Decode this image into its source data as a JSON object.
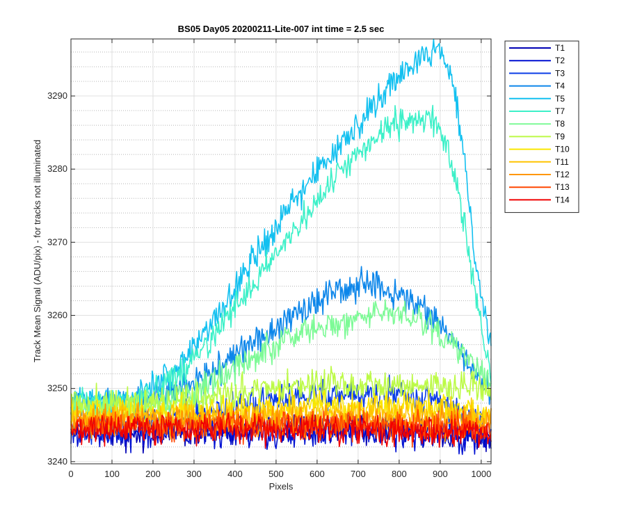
{
  "chart_data": {
    "type": "line",
    "title": "BS05 Day05 20200211-Lite-007 int time = 2.5 sec",
    "xlabel": "Pixels",
    "ylabel": "Track Mean Signal (ADU/pix) - for tracks not illuminated",
    "xlim": [
      0,
      1024
    ],
    "ylim": [
      3239.7,
      3297.8
    ],
    "xticks": [
      0,
      100,
      200,
      300,
      400,
      500,
      600,
      700,
      800,
      900,
      1000
    ],
    "yticks": [
      3240,
      3250,
      3260,
      3270,
      3280,
      3290
    ],
    "grid": "major and minor",
    "legend_position": "outside top-right",
    "series": [
      {
        "name": "T1",
        "color": "#0000b4",
        "x": [
          0,
          200,
          400,
          600,
          750,
          850,
          1000,
          1024
        ],
        "y": [
          3244,
          3244,
          3244.5,
          3244.5,
          3244.5,
          3244,
          3243.5,
          3243
        ]
      },
      {
        "name": "T2",
        "color": "#0010d2",
        "x": [
          0,
          200,
          400,
          600,
          750,
          850,
          1000,
          1024
        ],
        "y": [
          3244,
          3244,
          3244,
          3244,
          3244,
          3243.5,
          3243,
          3243
        ]
      },
      {
        "name": "T3",
        "color": "#0a3ce6",
        "x": [
          0,
          150,
          300,
          500,
          700,
          800,
          900,
          1000,
          1024
        ],
        "y": [
          3244.5,
          3245,
          3246.5,
          3248.5,
          3249.5,
          3249.5,
          3248,
          3245,
          3244
        ]
      },
      {
        "name": "T4",
        "color": "#0c86ea",
        "x": [
          0,
          150,
          250,
          350,
          450,
          550,
          650,
          700,
          750,
          800,
          850,
          900,
          950,
          1000,
          1024
        ],
        "y": [
          3248,
          3248,
          3249.5,
          3252.5,
          3256.5,
          3260,
          3263,
          3264,
          3264,
          3263,
          3261.5,
          3259,
          3255,
          3251,
          3249
        ]
      },
      {
        "name": "T5",
        "color": "#12c0f0",
        "x": [
          0,
          150,
          250,
          350,
          450,
          550,
          650,
          750,
          800,
          850,
          880,
          900,
          920,
          940,
          960,
          980,
          1000,
          1024
        ],
        "y": [
          3248,
          3248,
          3252,
          3259.5,
          3268,
          3276,
          3283,
          3289.5,
          3293,
          3295,
          3296,
          3295.5,
          3293.5,
          3289,
          3281,
          3270,
          3262.5,
          3256
        ]
      },
      {
        "name": "T7",
        "color": "#3cf0c8",
        "x": [
          0,
          150,
          250,
          350,
          450,
          550,
          650,
          750,
          800,
          850,
          880,
          900,
          920,
          940,
          960,
          980,
          1000,
          1024
        ],
        "y": [
          3248,
          3248,
          3251,
          3257.5,
          3264.5,
          3272,
          3279.5,
          3285,
          3286.5,
          3287,
          3286.5,
          3285,
          3282.5,
          3278,
          3272,
          3265,
          3259,
          3252
        ]
      },
      {
        "name": "T8",
        "color": "#7dfa96",
        "x": [
          0,
          150,
          250,
          350,
          450,
          550,
          650,
          750,
          800,
          850,
          900,
          950,
          1000,
          1024
        ],
        "y": [
          3247.5,
          3247.5,
          3248.5,
          3251,
          3254.5,
          3257.5,
          3259,
          3260,
          3260,
          3259,
          3257.5,
          3255,
          3252.5,
          3251
        ]
      },
      {
        "name": "T9",
        "color": "#bcfa46",
        "x": [
          0,
          200,
          400,
          600,
          800,
          1000,
          1024
        ],
        "y": [
          3248,
          3248,
          3249.5,
          3250.5,
          3250.5,
          3250,
          3249.5
        ]
      },
      {
        "name": "T10",
        "color": "#fae600",
        "x": [
          0,
          200,
          400,
          600,
          800,
          1000,
          1024
        ],
        "y": [
          3246.5,
          3246.5,
          3247,
          3247.5,
          3247.5,
          3247,
          3247
        ]
      },
      {
        "name": "T11",
        "color": "#ffc400",
        "x": [
          0,
          200,
          400,
          600,
          800,
          1000,
          1024
        ],
        "y": [
          3246,
          3246,
          3246,
          3246.5,
          3246.5,
          3246,
          3246
        ]
      },
      {
        "name": "T12",
        "color": "#ff9600",
        "x": [
          0,
          200,
          400,
          600,
          800,
          1000,
          1024
        ],
        "y": [
          3245.5,
          3245.5,
          3245.5,
          3245.5,
          3245.5,
          3245,
          3245
        ]
      },
      {
        "name": "T13",
        "color": "#ff4600",
        "x": [
          0,
          200,
          400,
          600,
          800,
          1000,
          1024
        ],
        "y": [
          3245,
          3245,
          3245,
          3245,
          3245,
          3244.5,
          3244.5
        ]
      },
      {
        "name": "T14",
        "color": "#f00000",
        "x": [
          0,
          200,
          400,
          600,
          800,
          1000,
          1024
        ],
        "y": [
          3244.5,
          3244.5,
          3244.5,
          3244.5,
          3244,
          3244,
          3244
        ]
      }
    ]
  }
}
